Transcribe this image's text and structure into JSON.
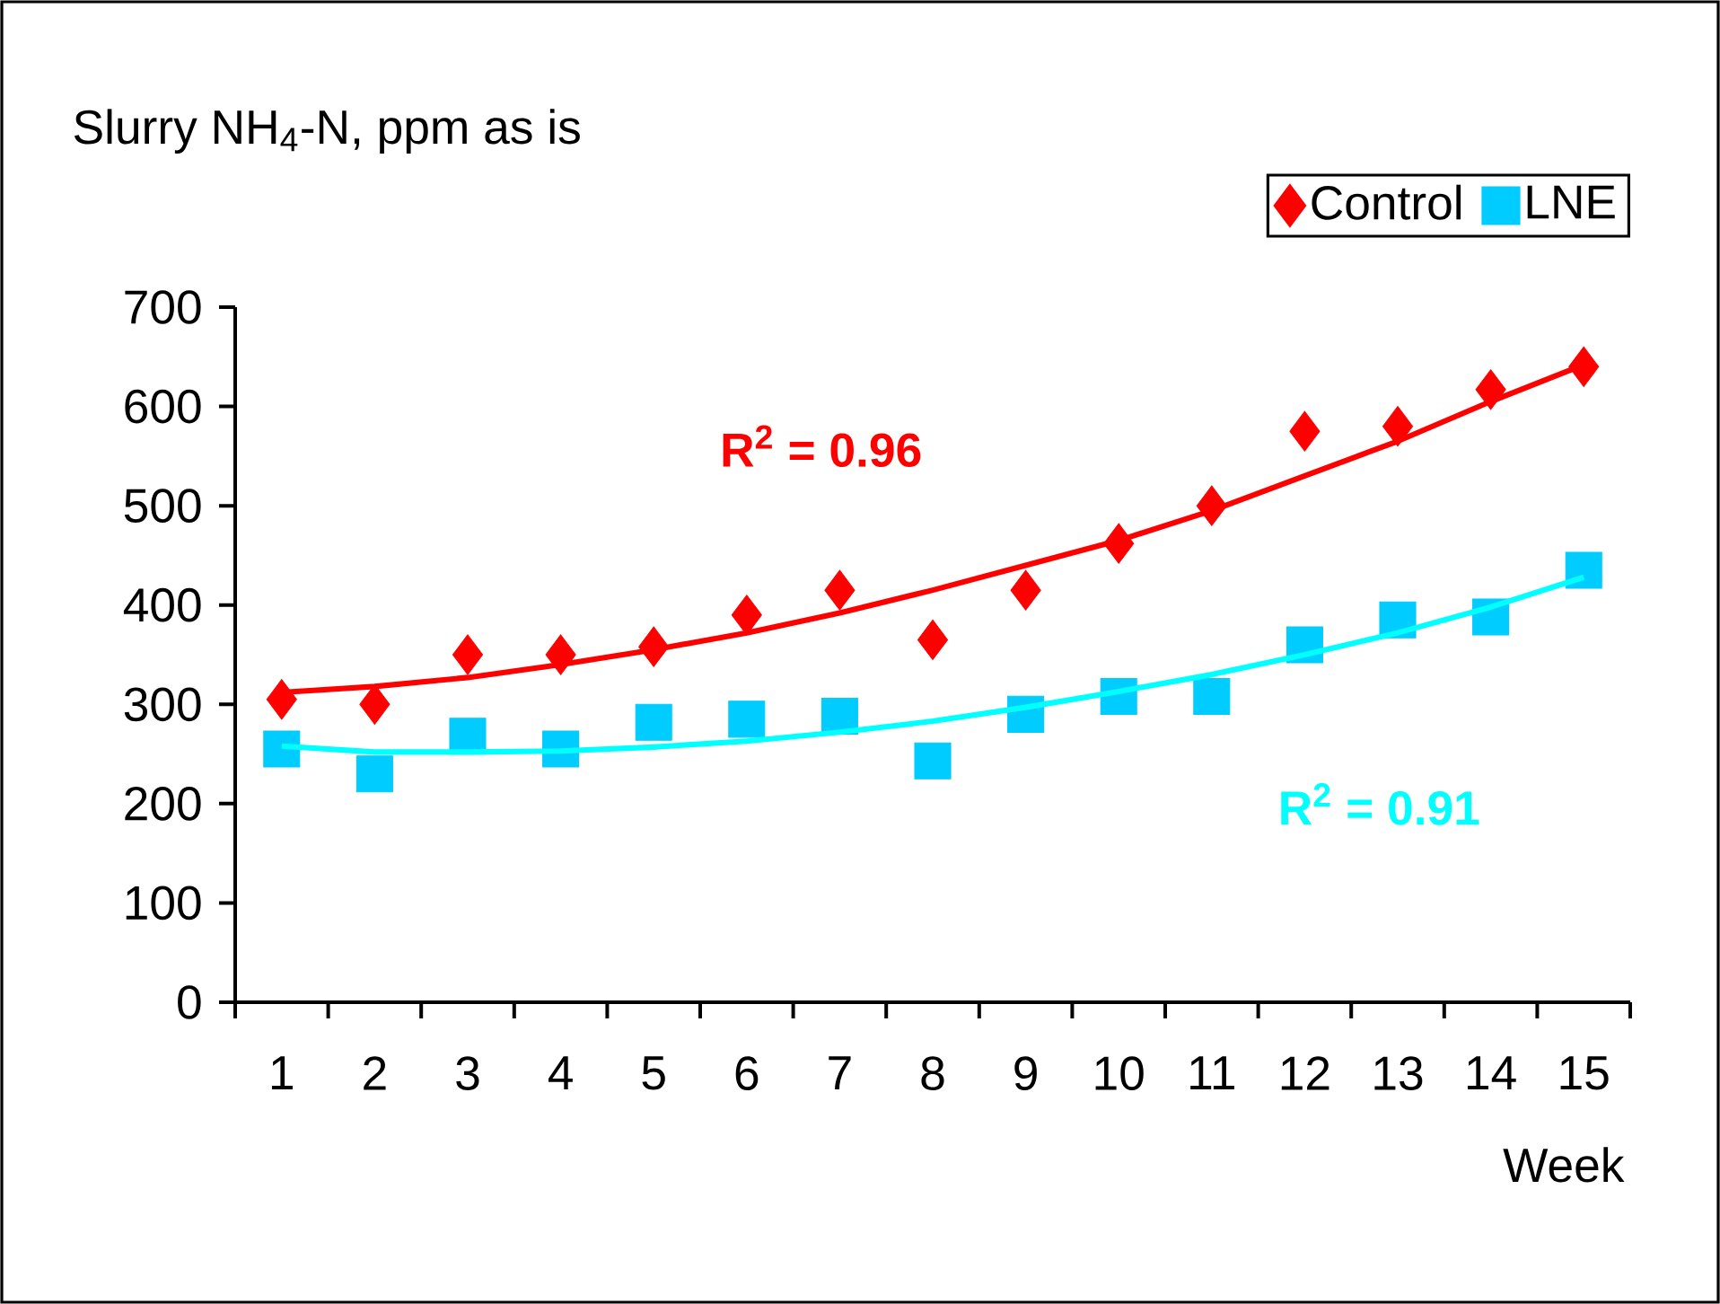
{
  "chart_data": {
    "type": "scatter",
    "ylabel": "Slurry NH$_{4}$-N, ppm as is",
    "xlabel": "Week",
    "categories": [
      "1",
      "2",
      "3",
      "4",
      "5",
      "6",
      "7",
      "8",
      "9",
      "10",
      "11",
      "12",
      "13",
      "14",
      "15"
    ],
    "series": [
      {
        "name": "Control",
        "color": "#ff0000",
        "marker": "diamond",
        "values": [
          305,
          300,
          350,
          350,
          358,
          390,
          415,
          365,
          415,
          462,
          500,
          575,
          580,
          617,
          640
        ]
      },
      {
        "name": "LNE",
        "color": "#00ccff",
        "marker": "square",
        "values": [
          255,
          230,
          268,
          255,
          282,
          285,
          288,
          243,
          290,
          308,
          308,
          360,
          385,
          388,
          435
        ]
      },
      {
        "type": "line",
        "color": "#ff0000",
        "values": [
          312,
          318,
          327,
          340,
          355,
          372,
          392,
          415,
          440,
          465,
          495,
          530,
          565,
          605,
          642
        ]
      },
      {
        "type": "line",
        "color": "#00ffff",
        "values": [
          258,
          252,
          252,
          253,
          257,
          263,
          272,
          283,
          297,
          313,
          330,
          350,
          372,
          398,
          428
        ]
      }
    ],
    "annotations": [
      "R$^{2}$ = 0.96",
      "R$^{2}$ = 0.91"
    ],
    "ylim": [
      0,
      700
    ],
    "yticks": [
      0,
      100,
      200,
      300,
      400,
      500,
      600,
      700
    ],
    "legend": "top right",
    "line_style": "solid",
    "grid": false
  }
}
